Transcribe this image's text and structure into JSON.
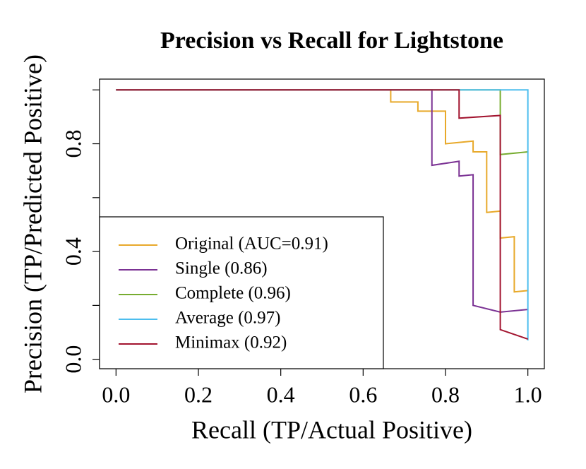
{
  "chart_data": {
    "type": "line",
    "title": "Precision vs Recall for Lightstone",
    "xlabel": "Recall (TP/Actual Positive)",
    "ylabel": "Precision (TP/Predicted Positive)",
    "xlim": [
      -0.04,
      1.04
    ],
    "ylim": [
      -0.035,
      1.04
    ],
    "xticks": [
      {
        "value": 0,
        "label": "0.0"
      },
      {
        "value": 0.2,
        "label": "0.2"
      },
      {
        "value": 0.4,
        "label": "0.4"
      },
      {
        "value": 0.6,
        "label": "0.6"
      },
      {
        "value": 0.8,
        "label": "0.8"
      },
      {
        "value": 1,
        "label": "1.0"
      }
    ],
    "yticks": [
      {
        "value": 0,
        "label": "0.0"
      },
      {
        "value": 0.4,
        "label": "0.4"
      },
      {
        "value": 0.8,
        "label": "0.8"
      }
    ],
    "yticks_unlabeled": [
      0.2,
      0.6,
      1.0
    ],
    "legend": "bottomleft",
    "series": [
      {
        "name": "Original (AUC=0.91)",
        "color": "#e8a92a",
        "x": [
          0,
          0.667,
          0.667,
          0.733,
          0.733,
          0.8,
          0.8,
          0.867,
          0.867,
          0.9,
          0.9,
          0.933,
          0.933,
          0.967,
          0.967,
          1
        ],
        "values": [
          1,
          1,
          0.955,
          0.955,
          0.921,
          0.921,
          0.8,
          0.81,
          0.77,
          0.77,
          0.545,
          0.55,
          0.45,
          0.455,
          0.25,
          0.255
        ]
      },
      {
        "name": "Single (0.86)",
        "color": "#7b3294",
        "x": [
          0,
          0.767,
          0.767,
          0.833,
          0.833,
          0.867,
          0.867,
          0.933,
          1
        ],
        "values": [
          1,
          1,
          0.72,
          0.735,
          0.68,
          0.685,
          0.2,
          0.175,
          0.185
        ]
      },
      {
        "name": "Complete (0.96)",
        "color": "#77ac30",
        "x": [
          0,
          0.933,
          0.933,
          1
        ],
        "values": [
          1,
          1,
          0.76,
          0.77
        ]
      },
      {
        "name": "Average (0.97)",
        "color": "#4dbeee",
        "x": [
          0,
          1,
          1
        ],
        "values": [
          1,
          1,
          0.07
        ]
      },
      {
        "name": "Minimax (0.92)",
        "color": "#a2142f",
        "x": [
          0,
          0.833,
          0.833,
          0.933,
          0.933,
          1
        ],
        "values": [
          1,
          1,
          0.895,
          0.905,
          0.11,
          0.075
        ]
      }
    ]
  }
}
